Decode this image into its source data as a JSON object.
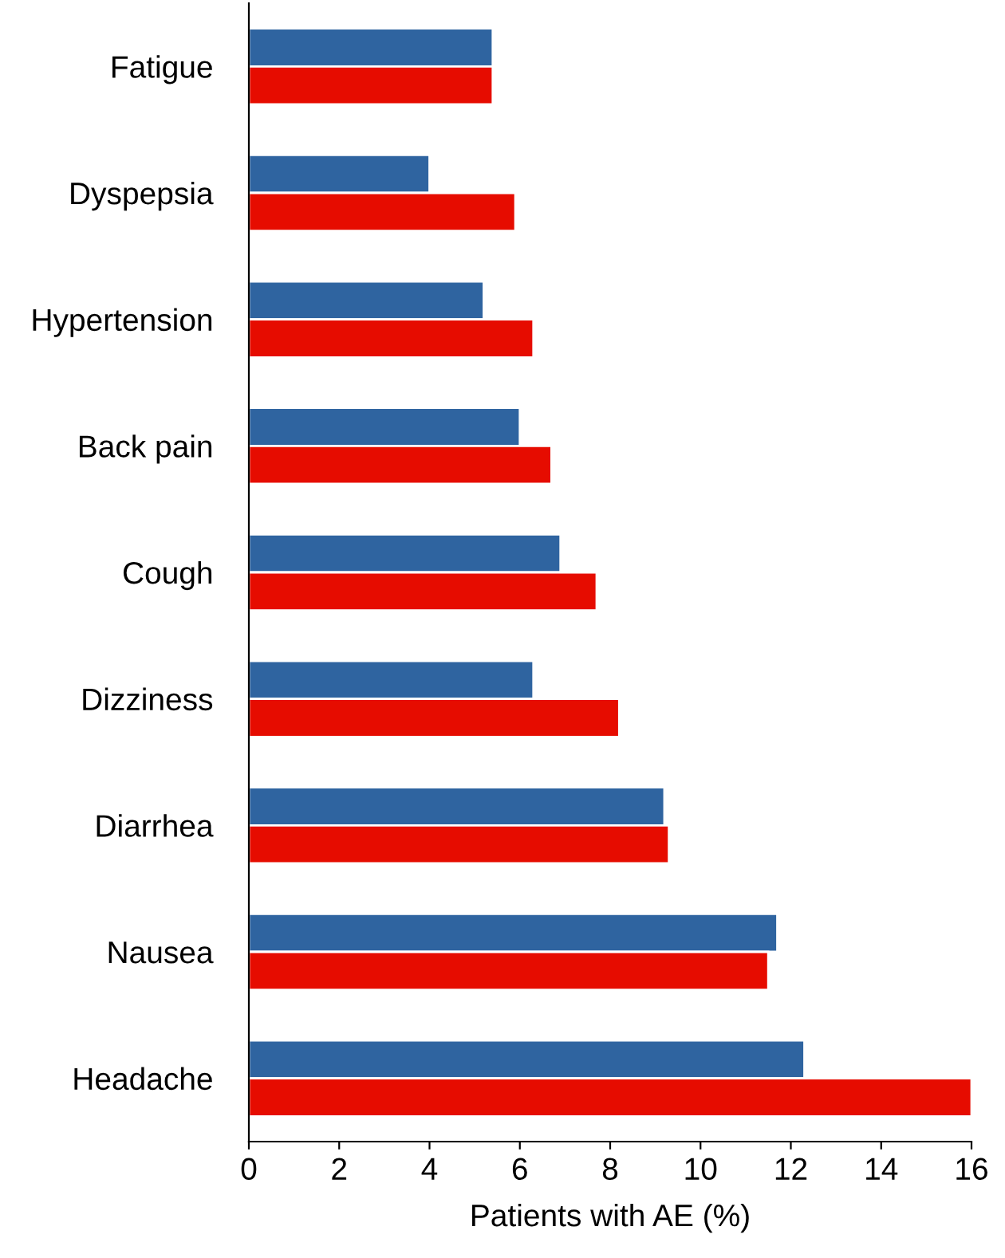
{
  "chart_data": {
    "type": "bar",
    "orientation": "horizontal",
    "xlabel": "Patients with AE (%)",
    "categories": [
      "Fatigue",
      "Dyspepsia",
      "Hypertension",
      "Back pain",
      "Cough",
      "Dizziness",
      "Diarrhea",
      "Nausea",
      "Headache"
    ],
    "series": [
      {
        "color": "#2f64a0",
        "values": [
          5.4,
          4.0,
          5.2,
          6.0,
          6.9,
          6.3,
          9.2,
          11.7,
          12.3
        ]
      },
      {
        "color": "#e60c00",
        "values": [
          5.4,
          5.9,
          6.3,
          6.7,
          7.7,
          8.2,
          9.3,
          11.5,
          16.0
        ]
      }
    ],
    "xlim": [
      0,
      16
    ],
    "xticks": [
      0,
      2,
      4,
      6,
      8,
      10,
      12,
      14,
      16
    ],
    "grid": false,
    "legend": false
  }
}
